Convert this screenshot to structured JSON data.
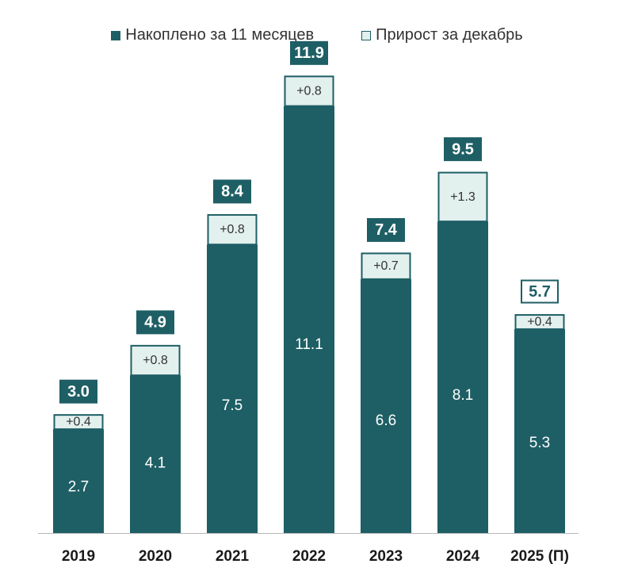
{
  "colors": {
    "main": "#1e5f65",
    "increment": "#e2f0ee",
    "increment_border": "#1e5f65",
    "total_box": "#1e5f65",
    "total_box_forecast_fill": "#ffffff",
    "axis": "#b8b8b8"
  },
  "chart_data": {
    "type": "bar",
    "stacked": true,
    "categories": [
      "2019",
      "2020",
      "2021",
      "2022",
      "2023",
      "2024",
      "2025 (П)"
    ],
    "series": [
      {
        "name": "Накоплено за 11 месяцев",
        "values": [
          2.7,
          4.1,
          7.5,
          11.1,
          6.6,
          8.1,
          5.3
        ],
        "labels": [
          "2.7",
          "4.1",
          "7.5",
          "11.1",
          "6.6",
          "8.1",
          "5.3"
        ]
      },
      {
        "name": "Прирост за декабрь",
        "values": [
          0.4,
          0.8,
          0.8,
          0.8,
          0.7,
          1.3,
          0.4
        ],
        "labels": [
          "+0.4",
          "+0.8",
          "+0.8",
          "+0.8",
          "+0.7",
          "+1.3",
          "+0.4"
        ]
      }
    ],
    "totals": [
      3.0,
      4.9,
      8.4,
      11.9,
      7.4,
      9.5,
      5.7
    ],
    "total_labels": [
      "3.0",
      "4.9",
      "8.4",
      "11.9",
      "7.4",
      "9.5",
      "5.7"
    ],
    "forecast_index": 6,
    "ylim": [
      0,
      12
    ]
  }
}
